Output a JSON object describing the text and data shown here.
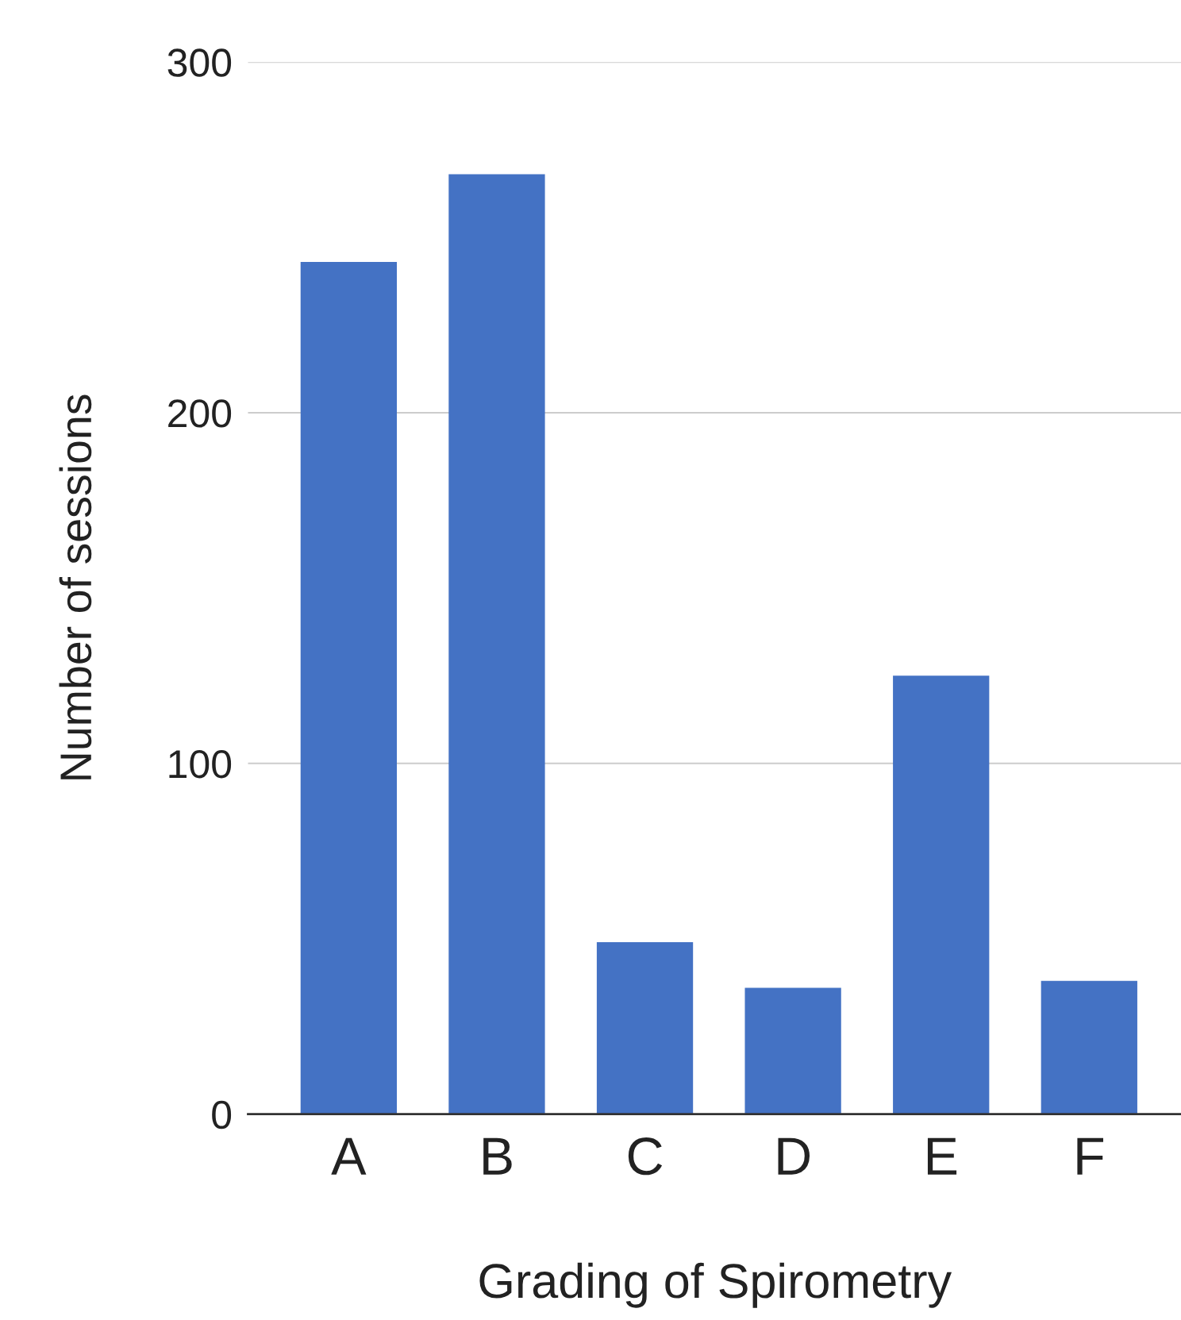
{
  "chart_data": {
    "type": "bar",
    "xlabel": "Grading of Spirometry",
    "ylabel": "Number of sessions",
    "categories": [
      "A",
      "B",
      "C",
      "D",
      "E",
      "F"
    ],
    "values": [
      243,
      268,
      49,
      36,
      125,
      38
    ],
    "color": "#4472c4",
    "ylim": [
      0,
      300
    ],
    "yticks": [
      0,
      100,
      200,
      300
    ],
    "grid": "y"
  }
}
